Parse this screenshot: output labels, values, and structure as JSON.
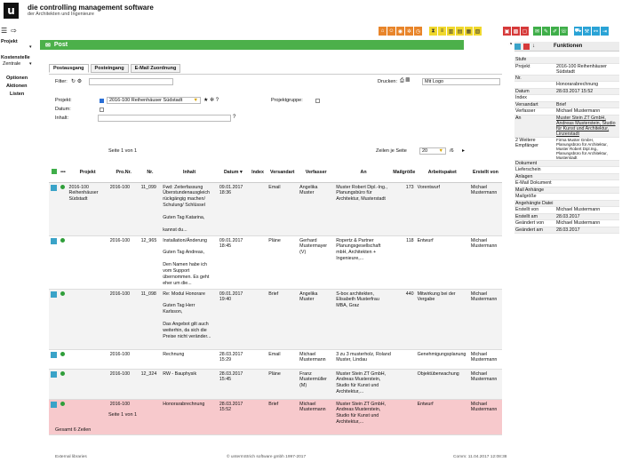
{
  "brand": {
    "title": "die controlling management software",
    "subtitle": "der Architekten und Ingenieure",
    "logo": "u"
  },
  "nav": {
    "projekt": "Projekt",
    "kostenstelle": "Kostenstelle",
    "kostenstelle_value": "Zentrale",
    "optionen": "Optionen",
    "aktionen": "Aktionen",
    "listen": "Listen"
  },
  "post_title": "Post",
  "tabs": [
    "Postausgang",
    "Posteingang",
    "E-Mail Zuordnung"
  ],
  "filter": {
    "label": "Filter:",
    "drucken": "Drucken:",
    "drucken_value": "Mit Logo",
    "projekt_label": "Projekt:",
    "projekt_value": "2016-100 Reihenhäuser Südstadt",
    "projektgruppe_label": "Projektgruppe:",
    "datum_label": "Datum:",
    "inhalt_label": "Inhalt:"
  },
  "paging": {
    "top": "Seite 1 von 1",
    "bottom": "Seite 1 von 1",
    "zeilen_label": "Zeilen je Seite",
    "zeilen_value": "20",
    "page_of": "/6",
    "total": "Gesamt 6 Zeilen"
  },
  "table": {
    "headers": [
      "Projekt",
      "Pro.Nr.",
      "Nr.",
      "Inhalt",
      "Datum",
      "Index",
      "Versandart",
      "Verfasser",
      "An",
      "Mailgröße",
      "Arbeitspaket",
      "Erstellt von"
    ],
    "rows": [
      {
        "projekt": "2016-100 Reihenhäuser Südstadt",
        "pronr": "2016-100",
        "nr": "11_099",
        "inhalt": "Fwd: Zeiterfassung Überstundenausgleich rückgängig machen/ Schulung/ Schlüssel\n\nGuten Tag Katarina,\n\nkannst du...",
        "datum": "09.01.2017 18:36",
        "index": "",
        "versandart": "Email",
        "verfasser": "Angelika Muster",
        "an": "Muster Robert Dipl.-Ing., Planungsbüro für Architektur, Musterstadt",
        "mail": "173",
        "ap": "Vorentwurf",
        "erstellt": "Michael Mustermann",
        "style": "alt"
      },
      {
        "projekt": "",
        "pronr": "2016-100",
        "nr": "12_965",
        "inhalt": "Installation/Änderung\n\nGuten Tag Andreas,\n\nDen Namen habe ich vom Support übernommen. Es geht eher um die...",
        "datum": "09.01.2017 18:45",
        "index": "",
        "versandart": "Pläne",
        "verfasser": "Gerhard Mustermayer (V)",
        "an": "Ropertz & Partner Planungsgesellschaft mbH, Architekten + Ingenieure,...",
        "mail": "118",
        "ap": "Entwurf",
        "erstellt": "Michael Mustermann",
        "style": ""
      },
      {
        "projekt": "",
        "pronr": "2016-100",
        "nr": "11_098",
        "inhalt": "Re: Modul Honorare\n\nGuten Tag Herr Karlsson,\n\nDas Angebot gilt auch weiterhin, da sich die Preise nicht veränder...",
        "datum": "09.01.2017 19:40",
        "index": "",
        "versandart": "Brief",
        "verfasser": "Angelika Muster",
        "an": "S-box architekten, Elisabeth Musterfrau MBA, Graz",
        "mail": "440",
        "ap": "Mitwirkung bei der Vergabe",
        "erstellt": "Michael Mustermann",
        "style": "alt"
      },
      {
        "projekt": "",
        "pronr": "2016-100",
        "nr": "",
        "inhalt": "Rechnung",
        "datum": "28.03.2017 15:29",
        "index": "",
        "versandart": "Email",
        "verfasser": "Michael Mustermann",
        "an": "3 zu 3 musterholz, Roland Muster, Lindau",
        "mail": "",
        "ap": "Genehmigungsplanung",
        "erstellt": "Michael Mustermann",
        "style": ""
      },
      {
        "projekt": "",
        "pronr": "2016-100",
        "nr": "12_324",
        "inhalt": "RW - Bauphysik",
        "datum": "28.03.2017 15:45",
        "index": "",
        "versandart": "Pläne",
        "verfasser": "Franz Mustermüller (M)",
        "an": "Muster Stein ZT GmbH, Andreas Musterstein, Studio für Kunst und Architektur,...",
        "mail": "",
        "ap": "Objektüberwachung",
        "erstellt": "Michael Mustermann",
        "style": "alt"
      },
      {
        "projekt": "",
        "pronr": "2016-100",
        "nr": "",
        "inhalt": "Honorarabrechnung",
        "datum": "28.03.2017 15:52",
        "index": "",
        "versandart": "Brief",
        "verfasser": "Michael Mustermann",
        "an": "Muster Stein ZT GmbH, Andreas Musterstein, Studio für Kunst und Architektur,...",
        "mail": "",
        "ap": "Entwurf",
        "erstellt": "Michael Mustermann",
        "style": "hl"
      }
    ]
  },
  "panel": {
    "title": "Funktionen",
    "rows": [
      {
        "k": "Stufe",
        "v": ""
      },
      {
        "k": "Projekt",
        "v": "2016-100 Reihenhäuser Südstadt"
      },
      {
        "k": "Nr.",
        "v": ""
      },
      {
        "k": "",
        "v": "Honorarabrechnung"
      },
      {
        "k": "Datum",
        "v": "28.03.2017 15:52"
      },
      {
        "k": "Index",
        "v": ""
      },
      {
        "k": "Versandart",
        "v": "Brief"
      },
      {
        "k": "Verfasser",
        "v": "Michael Mustermann"
      },
      {
        "k": "An",
        "v": "Muster Stein ZT GmbH, Andreas Musterstein, Studio für Kunst und Architektur, Linzerstadt"
      },
      {
        "k": "2 Weitere Empfänger",
        "v": "Firma Muster GmbH, Planungsbüro für Architektur, Muster Robert Dipl.Ing., Planungsbüro für Architektur, Musterstadt"
      },
      {
        "k": "Dokument",
        "v": ""
      },
      {
        "k": "Lieferschein",
        "v": ""
      },
      {
        "k": "Anlagen",
        "v": ""
      },
      {
        "k": "E-Mail Dokument",
        "v": ""
      },
      {
        "k": "Mail Anhänge",
        "v": ""
      },
      {
        "k": "Mailgröße",
        "v": ""
      },
      {
        "k": "Angehängte Datei",
        "v": ""
      },
      {
        "k": "Erstellt von",
        "v": "Michael Mustermann"
      },
      {
        "k": "Erstellt am",
        "v": "28.03.2017"
      },
      {
        "k": "Geändert von",
        "v": "Michael Mustermann"
      },
      {
        "k": "Geändert am",
        "v": "28.03.2017"
      }
    ]
  },
  "footer": {
    "left": "External libraries",
    "center": "© untermStrich software gmbh 1997-2017",
    "right": "Comm: 11.04.2017 12:08:38"
  },
  "colors": {
    "accent_green": "#4cb04a",
    "highlight_row": "#f7c9cc"
  }
}
